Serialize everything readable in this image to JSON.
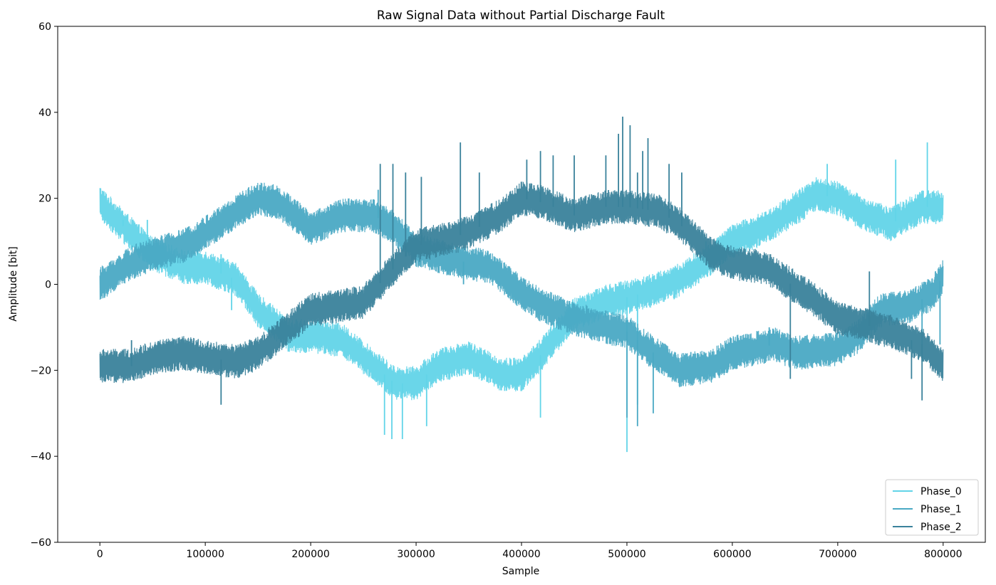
{
  "chart_data": {
    "type": "line",
    "title": "Raw Signal Data without Partial Discharge Fault",
    "xlabel": "Sample",
    "ylabel": "Amplitude [bit]",
    "xlim": [
      -40000,
      840000
    ],
    "ylim": [
      -60,
      60
    ],
    "xticks": [
      0,
      100000,
      200000,
      300000,
      400000,
      500000,
      600000,
      700000,
      800000
    ],
    "xtick_labels": [
      "0",
      "100000",
      "200000",
      "300000",
      "400000",
      "500000",
      "600000",
      "700000",
      "800000"
    ],
    "yticks": [
      -60,
      -40,
      -20,
      0,
      20,
      40,
      60
    ],
    "ytick_labels": [
      "−60",
      "−40",
      "−20",
      "0",
      "20",
      "40",
      "60"
    ],
    "grid": false,
    "legend_position": "bottom-right",
    "series": [
      {
        "name": "Phase_0",
        "color": "#62d4e8",
        "noise_band": 4,
        "x": [
          0,
          20000,
          50000,
          80000,
          100000,
          130000,
          150000,
          180000,
          200000,
          230000,
          260000,
          280000,
          300000,
          320000,
          350000,
          380000,
          400000,
          420000,
          450000,
          480000,
          500000,
          530000,
          550000,
          580000,
          600000,
          630000,
          650000,
          680000,
          700000,
          720000,
          750000,
          780000,
          800000
        ],
        "y": [
          19,
          14,
          7,
          4,
          4,
          1,
          -6,
          -12,
          -12,
          -13,
          -19,
          -23,
          -23,
          -19,
          -17,
          -21,
          -21,
          -16,
          -7,
          -4,
          -3,
          -1,
          1,
          6,
          10,
          13,
          16,
          21,
          20,
          17,
          14,
          18,
          18
        ],
        "spikes": [
          {
            "x": 22000,
            "y": 15
          },
          {
            "x": 45000,
            "y": 15
          },
          {
            "x": 115000,
            "y": 7
          },
          {
            "x": 125000,
            "y": -6
          },
          {
            "x": 270000,
            "y": -35
          },
          {
            "x": 277000,
            "y": -36
          },
          {
            "x": 287000,
            "y": -36
          },
          {
            "x": 310000,
            "y": -33
          },
          {
            "x": 418000,
            "y": -31
          },
          {
            "x": 500000,
            "y": -39
          },
          {
            "x": 510000,
            "y": -28
          },
          {
            "x": 575000,
            "y": 10
          },
          {
            "x": 690000,
            "y": 28
          },
          {
            "x": 755000,
            "y": 29
          },
          {
            "x": 785000,
            "y": 33
          }
        ]
      },
      {
        "name": "Phase_1",
        "color": "#4aa9c4",
        "noise_band": 4,
        "x": [
          0,
          30000,
          50000,
          80000,
          100000,
          130000,
          150000,
          170000,
          200000,
          230000,
          260000,
          280000,
          300000,
          330000,
          350000,
          370000,
          400000,
          420000,
          450000,
          480000,
          500000,
          520000,
          550000,
          580000,
          600000,
          640000,
          660000,
          700000,
          720000,
          740000,
          770000,
          790000,
          800000
        ],
        "y": [
          0,
          5,
          7,
          9,
          12,
          17,
          20,
          19,
          13,
          16,
          16,
          13,
          8,
          6,
          5,
          4,
          -2,
          -5,
          -8,
          -10,
          -11,
          -15,
          -20,
          -19,
          -16,
          -14,
          -16,
          -15,
          -12,
          -6,
          -5,
          -2,
          2
        ],
        "spikes": [
          {
            "x": 264000,
            "y": 22
          },
          {
            "x": 345000,
            "y": 0
          },
          {
            "x": 500000,
            "y": -31
          },
          {
            "x": 510000,
            "y": -33
          },
          {
            "x": 525000,
            "y": -30
          },
          {
            "x": 635000,
            "y": -10
          },
          {
            "x": 780000,
            "y": -18
          },
          {
            "x": 797000,
            "y": -14
          }
        ]
      },
      {
        "name": "Phase_2",
        "color": "#3a829b",
        "noise_band": 4,
        "x": [
          0,
          30000,
          50000,
          80000,
          100000,
          130000,
          150000,
          180000,
          200000,
          230000,
          250000,
          280000,
          300000,
          320000,
          350000,
          380000,
          400000,
          420000,
          450000,
          480000,
          500000,
          530000,
          550000,
          580000,
          600000,
          630000,
          650000,
          680000,
          700000,
          720000,
          750000,
          780000,
          800000
        ],
        "y": [
          -19,
          -19,
          -17,
          -16,
          -17,
          -18,
          -16,
          -10,
          -6,
          -5,
          -4,
          4,
          9,
          10,
          12,
          16,
          20,
          19,
          16,
          18,
          18,
          17,
          14,
          7,
          5,
          4,
          1,
          -4,
          -8,
          -9,
          -11,
          -14,
          -19
        ],
        "spikes": [
          {
            "x": 30000,
            "y": -13
          },
          {
            "x": 115000,
            "y": -28
          },
          {
            "x": 266000,
            "y": 28
          },
          {
            "x": 278000,
            "y": 28
          },
          {
            "x": 290000,
            "y": 26
          },
          {
            "x": 305000,
            "y": 25
          },
          {
            "x": 342000,
            "y": 33
          },
          {
            "x": 360000,
            "y": 26
          },
          {
            "x": 405000,
            "y": 29
          },
          {
            "x": 418000,
            "y": 31
          },
          {
            "x": 430000,
            "y": 30
          },
          {
            "x": 450000,
            "y": 30
          },
          {
            "x": 480000,
            "y": 30
          },
          {
            "x": 492000,
            "y": 35
          },
          {
            "x": 496000,
            "y": 39
          },
          {
            "x": 503000,
            "y": 37
          },
          {
            "x": 510000,
            "y": 26
          },
          {
            "x": 515000,
            "y": 31
          },
          {
            "x": 520000,
            "y": 34
          },
          {
            "x": 540000,
            "y": 28
          },
          {
            "x": 552000,
            "y": 26
          },
          {
            "x": 655000,
            "y": -22
          },
          {
            "x": 730000,
            "y": 3
          },
          {
            "x": 770000,
            "y": -22
          },
          {
            "x": 780000,
            "y": -27
          }
        ]
      }
    ]
  }
}
